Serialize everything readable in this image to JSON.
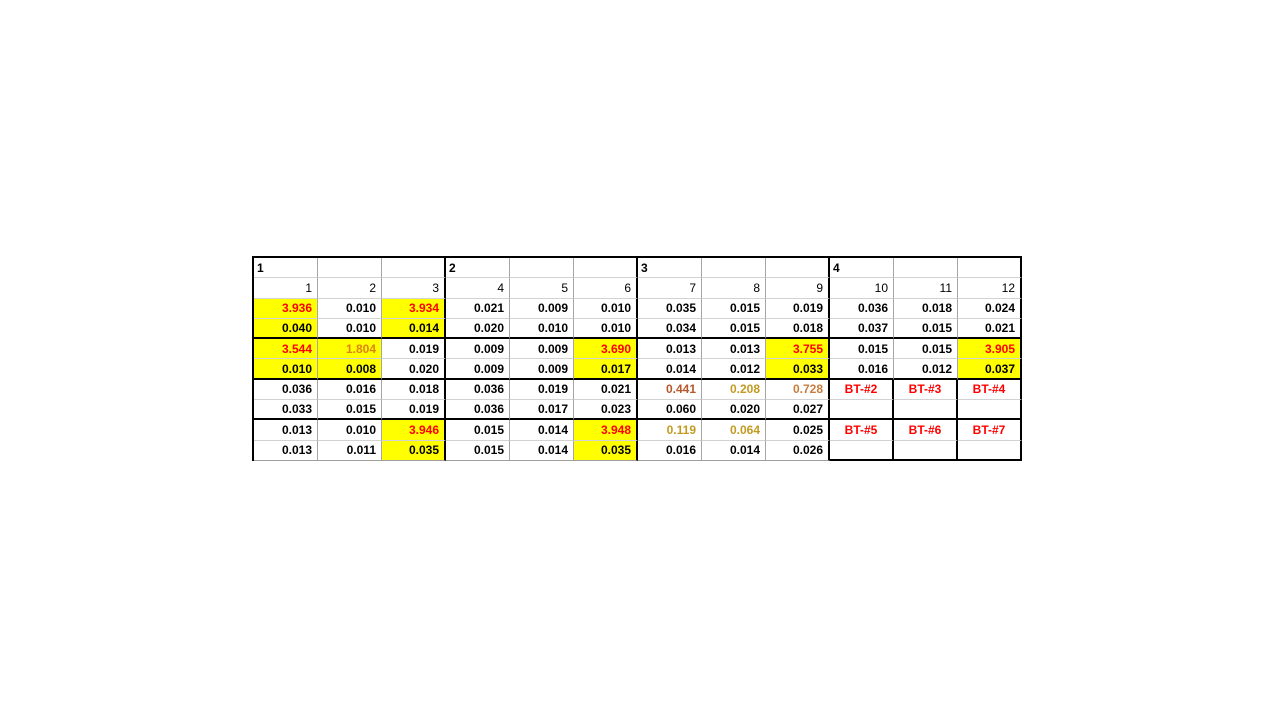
{
  "page": {
    "background": "#FFFFFF"
  },
  "table": {
    "colors": {
      "highlight_yellow": "#FFFF00",
      "alert_red": "#FF0000",
      "orange": "#E08214",
      "brick": "#B5572B",
      "gold": "#C39A20",
      "amber": "#C97B3C",
      "thick_border": "#000000",
      "grid_v": "#A6A6A6",
      "grid_h": "#D2D2D2",
      "table_bottom": "#9E9E9E"
    },
    "group_row": [
      "1",
      "",
      "",
      "2",
      "",
      "",
      "3",
      "",
      "",
      "4",
      "",
      ""
    ],
    "index_row": [
      "1",
      "2",
      "3",
      "4",
      "5",
      "6",
      "7",
      "8",
      "9",
      "10",
      "11",
      "12"
    ],
    "data_rows": [
      [
        {
          "t": "3.936",
          "bg": "#FFFF00",
          "fg": "#FF0000"
        },
        {
          "t": "0.010"
        },
        {
          "t": "3.934",
          "bg": "#FFFF00",
          "fg": "#FF0000"
        },
        {
          "t": "0.021"
        },
        {
          "t": "0.009"
        },
        {
          "t": "0.010"
        },
        {
          "t": "0.035"
        },
        {
          "t": "0.015"
        },
        {
          "t": "0.019"
        },
        {
          "t": "0.036"
        },
        {
          "t": "0.018"
        },
        {
          "t": "0.024"
        }
      ],
      [
        {
          "t": "0.040",
          "bg": "#FFFF00"
        },
        {
          "t": "0.010"
        },
        {
          "t": "0.014",
          "bg": "#FFFF00"
        },
        {
          "t": "0.020"
        },
        {
          "t": "0.010"
        },
        {
          "t": "0.010"
        },
        {
          "t": "0.034"
        },
        {
          "t": "0.015"
        },
        {
          "t": "0.018"
        },
        {
          "t": "0.037"
        },
        {
          "t": "0.015"
        },
        {
          "t": "0.021"
        }
      ],
      [
        {
          "t": "3.544",
          "bg": "#FFFF00",
          "fg": "#FF0000"
        },
        {
          "t": "1.804",
          "bg": "#FFFF00",
          "fg": "#E08214"
        },
        {
          "t": "0.019"
        },
        {
          "t": "0.009"
        },
        {
          "t": "0.009"
        },
        {
          "t": "3.690",
          "bg": "#FFFF00",
          "fg": "#FF0000"
        },
        {
          "t": "0.013"
        },
        {
          "t": "0.013"
        },
        {
          "t": "3.755",
          "bg": "#FFFF00",
          "fg": "#FF0000"
        },
        {
          "t": "0.015"
        },
        {
          "t": "0.015"
        },
        {
          "t": "3.905",
          "bg": "#FFFF00",
          "fg": "#FF0000"
        }
      ],
      [
        {
          "t": "0.010",
          "bg": "#FFFF00"
        },
        {
          "t": "0.008",
          "bg": "#FFFF00"
        },
        {
          "t": "0.020"
        },
        {
          "t": "0.009"
        },
        {
          "t": "0.009"
        },
        {
          "t": "0.017",
          "bg": "#FFFF00"
        },
        {
          "t": "0.014"
        },
        {
          "t": "0.012"
        },
        {
          "t": "0.033",
          "bg": "#FFFF00"
        },
        {
          "t": "0.016"
        },
        {
          "t": "0.012"
        },
        {
          "t": "0.037",
          "bg": "#FFFF00"
        }
      ],
      [
        {
          "t": "0.036"
        },
        {
          "t": "0.016"
        },
        {
          "t": "0.018"
        },
        {
          "t": "0.036"
        },
        {
          "t": "0.019"
        },
        {
          "t": "0.021"
        },
        {
          "t": "0.441",
          "fg": "#B5572B"
        },
        {
          "t": "0.208",
          "fg": "#C39A20"
        },
        {
          "t": "0.728",
          "fg": "#C97B3C"
        },
        {
          "t": "BT-#2",
          "fg": "#FF0000",
          "c": true
        },
        {
          "t": "BT-#3",
          "fg": "#FF0000",
          "c": true
        },
        {
          "t": "BT-#4",
          "fg": "#FF0000",
          "c": true
        }
      ],
      [
        {
          "t": "0.033"
        },
        {
          "t": "0.015"
        },
        {
          "t": "0.019"
        },
        {
          "t": "0.036"
        },
        {
          "t": "0.017"
        },
        {
          "t": "0.023"
        },
        {
          "t": "0.060"
        },
        {
          "t": "0.020"
        },
        {
          "t": "0.027"
        },
        {
          "t": ""
        },
        {
          "t": ""
        },
        {
          "t": ""
        }
      ],
      [
        {
          "t": "0.013"
        },
        {
          "t": "0.010"
        },
        {
          "t": "3.946",
          "bg": "#FFFF00",
          "fg": "#FF0000"
        },
        {
          "t": "0.015"
        },
        {
          "t": "0.014"
        },
        {
          "t": "3.948",
          "bg": "#FFFF00",
          "fg": "#FF0000"
        },
        {
          "t": "0.119",
          "fg": "#C39A20"
        },
        {
          "t": "0.064",
          "fg": "#C39A20"
        },
        {
          "t": "0.025"
        },
        {
          "t": "BT-#5",
          "fg": "#FF0000",
          "c": true
        },
        {
          "t": "BT-#6",
          "fg": "#FF0000",
          "c": true
        },
        {
          "t": "BT-#7",
          "fg": "#FF0000",
          "c": true
        }
      ],
      [
        {
          "t": "0.013"
        },
        {
          "t": "0.011"
        },
        {
          "t": "0.035",
          "bg": "#FFFF00"
        },
        {
          "t": "0.015"
        },
        {
          "t": "0.014"
        },
        {
          "t": "0.035",
          "bg": "#FFFF00"
        },
        {
          "t": "0.016"
        },
        {
          "t": "0.014"
        },
        {
          "t": "0.026"
        },
        {
          "t": ""
        },
        {
          "t": ""
        },
        {
          "t": ""
        }
      ]
    ]
  }
}
